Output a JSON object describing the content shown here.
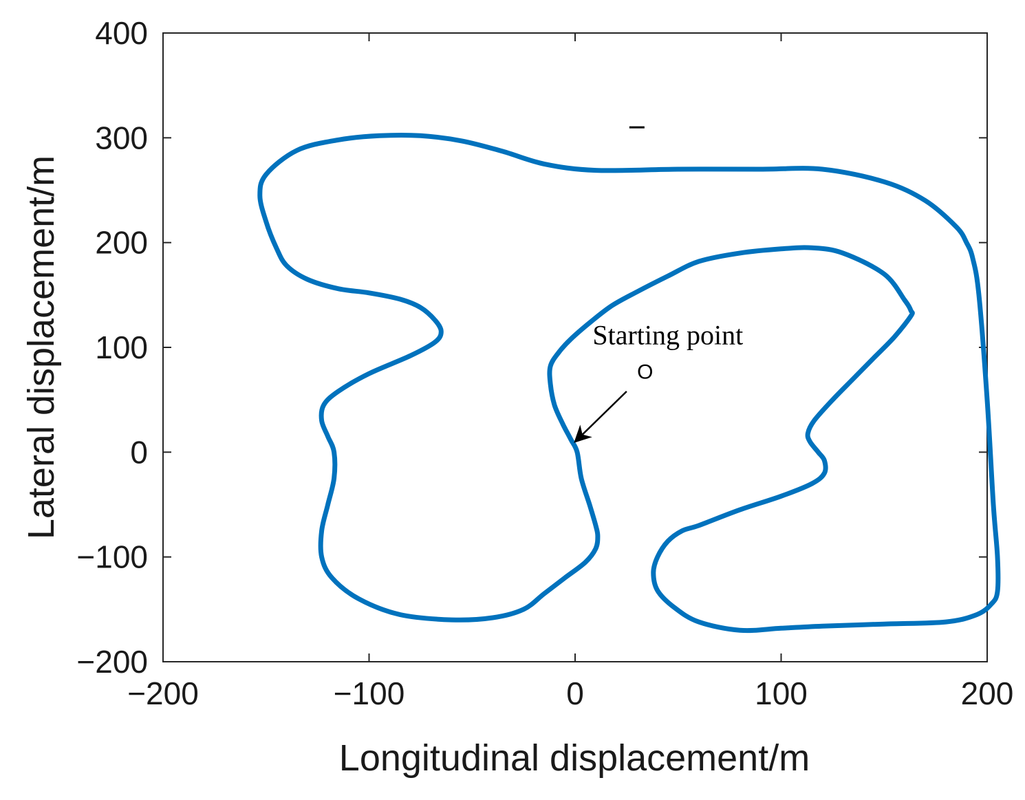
{
  "chart_data": {
    "type": "line",
    "title": "",
    "xlabel": "Longitudinal displacement/m",
    "ylabel": "Lateral displacement/m",
    "xlim": [
      -200,
      200
    ],
    "ylim": [
      -200,
      400
    ],
    "xticks": [
      -200,
      -100,
      0,
      100,
      200
    ],
    "yticks": [
      -200,
      -100,
      0,
      100,
      200,
      300,
      400
    ],
    "xtick_labels": [
      "−200",
      "−100",
      "0",
      "100",
      "200"
    ],
    "ytick_labels": [
      "−200",
      "−100",
      "0",
      "100",
      "200",
      "300",
      "400"
    ],
    "grid": false,
    "box": true,
    "series": [
      {
        "color": "#0072BD",
        "closed": true,
        "x": [
          1,
          -2,
          -6,
          -10,
          -12,
          -12,
          -8,
          -2,
          8,
          18,
          30,
          45,
          60,
          80,
          100,
          115,
          130,
          150,
          160,
          163,
          163,
          155,
          145,
          135,
          125,
          116,
          113,
          114,
          118,
          121,
          121,
          115,
          100,
          80,
          60,
          52,
          45,
          40,
          38,
          40,
          48,
          60,
          80,
          100,
          120,
          150,
          180,
          195,
          202,
          205,
          205,
          203,
          200,
          196,
          193,
          190,
          185,
          170,
          150,
          120,
          90,
          50,
          10,
          -15,
          -35,
          -55,
          -75,
          -95,
          -115,
          -135,
          -150,
          -153,
          -150,
          -145,
          -140,
          -130,
          -115,
          -100,
          -85,
          -75,
          -68,
          -65,
          -68,
          -80,
          -100,
          -115,
          -122,
          -123,
          -120,
          -117,
          -117,
          -120,
          -123,
          -123,
          -118,
          -105,
          -85,
          -60,
          -40,
          -25,
          -15,
          -5,
          5,
          10,
          11,
          10,
          7,
          3
        ],
        "y": [
          0,
          12,
          27,
          45,
          65,
          82,
          95,
          108,
          125,
          140,
          153,
          168,
          182,
          190,
          194,
          195,
          190,
          170,
          145,
          135,
          130,
          110,
          90,
          70,
          50,
          30,
          18,
          10,
          0,
          -8,
          -20,
          -30,
          -42,
          -55,
          -70,
          -75,
          -85,
          -100,
          -115,
          -132,
          -148,
          -162,
          -170,
          -168,
          -166,
          -164,
          -162,
          -155,
          -145,
          -133,
          -100,
          -50,
          50,
          150,
          185,
          200,
          215,
          240,
          258,
          270,
          270,
          270,
          269,
          275,
          287,
          297,
          302,
          302,
          298,
          288,
          265,
          245,
          220,
          195,
          178,
          165,
          156,
          152,
          146,
          138,
          126,
          115,
          105,
          92,
          75,
          58,
          45,
          30,
          15,
          0,
          -25,
          -50,
          -75,
          -100,
          -120,
          -140,
          -155,
          -160,
          -158,
          -150,
          -135,
          -120,
          -105,
          -92,
          -80,
          -70,
          -50,
          -25
        ]
      }
    ],
    "annotations": [
      {
        "text": "Starting point",
        "x": 45,
        "y": 103
      },
      {
        "text": "O",
        "x": 34,
        "y": 70
      }
    ],
    "arrow": {
      "from": [
        25,
        58
      ],
      "to": [
        0,
        10
      ],
      "color": "#000000"
    },
    "stray_mark": {
      "x": 30,
      "y": 310
    }
  }
}
